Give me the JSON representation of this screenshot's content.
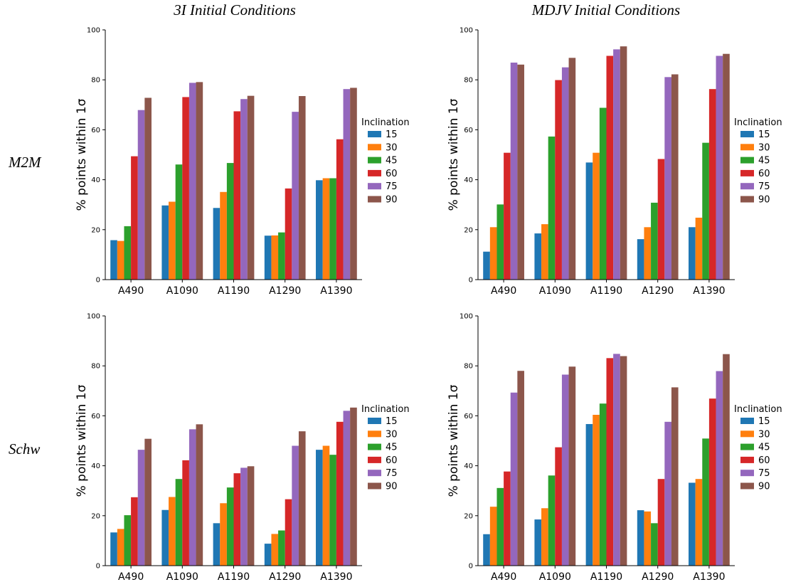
{
  "figure": {
    "column_titles": [
      "3I Initial Conditions",
      "MDJV Initial Conditions"
    ],
    "row_labels": [
      "M2M",
      "Schw"
    ]
  },
  "legend": {
    "title": "Inclination",
    "entries": [
      "15",
      "30",
      "45",
      "60",
      "75",
      "90"
    ],
    "colors": [
      "#1f77b4",
      "#ff7f0e",
      "#2ca02c",
      "#d62728",
      "#9467bd",
      "#8c564b"
    ]
  },
  "chart_data": [
    {
      "type": "bar",
      "panel": "3I Initial Conditions / M2M",
      "categories": [
        "A490",
        "A1090",
        "A1190",
        "A1290",
        "A1390"
      ],
      "ylabel": "% points within 1σ",
      "xlabel": "",
      "ylim": [
        0,
        100
      ],
      "yticks": [
        0,
        20,
        40,
        60,
        80,
        100
      ],
      "legend_title": "Inclination",
      "series": [
        {
          "name": "15",
          "values": [
            15.8,
            29.7,
            28.7,
            17.6,
            39.8
          ]
        },
        {
          "name": "30",
          "values": [
            15.5,
            31.2,
            35.1,
            17.7,
            40.6
          ]
        },
        {
          "name": "45",
          "values": [
            21.4,
            46.1,
            46.7,
            18.9,
            40.6
          ]
        },
        {
          "name": "60",
          "values": [
            49.4,
            73.1,
            67.4,
            36.5,
            56.2
          ]
        },
        {
          "name": "75",
          "values": [
            67.9,
            78.8,
            72.3,
            67.2,
            76.3
          ]
        },
        {
          "name": "90",
          "values": [
            72.8,
            79.1,
            73.6,
            73.5,
            76.8
          ]
        }
      ]
    },
    {
      "type": "bar",
      "panel": "MDJV Initial Conditions / M2M",
      "categories": [
        "A490",
        "A1090",
        "A1190",
        "A1290",
        "A1390"
      ],
      "ylabel": "% points within 1σ",
      "xlabel": "",
      "ylim": [
        0,
        100
      ],
      "yticks": [
        0,
        20,
        40,
        60,
        80,
        100
      ],
      "legend_title": "Inclination",
      "series": [
        {
          "name": "15",
          "values": [
            11.2,
            18.5,
            46.9,
            16.2,
            21.0
          ]
        },
        {
          "name": "30",
          "values": [
            21.0,
            22.2,
            50.8,
            21.0,
            24.8
          ]
        },
        {
          "name": "45",
          "values": [
            30.1,
            57.3,
            68.8,
            30.8,
            54.8
          ]
        },
        {
          "name": "60",
          "values": [
            50.8,
            79.9,
            89.6,
            48.3,
            76.3
          ]
        },
        {
          "name": "75",
          "values": [
            86.9,
            85.0,
            92.2,
            81.1,
            89.6
          ]
        },
        {
          "name": "90",
          "values": [
            86.1,
            88.8,
            93.4,
            82.2,
            90.4
          ]
        }
      ]
    },
    {
      "type": "bar",
      "panel": "3I Initial Conditions / Schw",
      "categories": [
        "A490",
        "A1090",
        "A1190",
        "A1290",
        "A1390"
      ],
      "ylabel": "% points within 1σ",
      "xlabel": "",
      "ylim": [
        0,
        100
      ],
      "yticks": [
        0,
        20,
        40,
        60,
        80,
        100
      ],
      "legend_title": "Inclination",
      "series": [
        {
          "name": "15",
          "values": [
            13.3,
            22.3,
            17.0,
            8.8,
            46.4
          ]
        },
        {
          "name": "30",
          "values": [
            14.7,
            27.5,
            25.0,
            12.7,
            48.0
          ]
        },
        {
          "name": "45",
          "values": [
            20.2,
            34.7,
            31.3,
            14.1,
            44.4
          ]
        },
        {
          "name": "60",
          "values": [
            27.4,
            42.2,
            37.0,
            26.6,
            57.6
          ]
        },
        {
          "name": "75",
          "values": [
            46.4,
            54.6,
            39.2,
            48.0,
            62.0
          ]
        },
        {
          "name": "90",
          "values": [
            50.8,
            56.6,
            39.8,
            53.8,
            63.3
          ]
        }
      ]
    },
    {
      "type": "bar",
      "panel": "MDJV Initial Conditions / Schw",
      "categories": [
        "A490",
        "A1090",
        "A1190",
        "A1290",
        "A1390"
      ],
      "ylabel": "% points within 1σ",
      "xlabel": "",
      "ylim": [
        0,
        100
      ],
      "yticks": [
        0,
        20,
        40,
        60,
        80,
        100
      ],
      "legend_title": "Inclination",
      "series": [
        {
          "name": "15",
          "values": [
            12.6,
            18.5,
            56.7,
            22.2,
            33.2
          ]
        },
        {
          "name": "30",
          "values": [
            23.6,
            23.0,
            60.4,
            21.7,
            34.7
          ]
        },
        {
          "name": "45",
          "values": [
            31.1,
            36.1,
            64.9,
            17.0,
            50.9
          ]
        },
        {
          "name": "60",
          "values": [
            37.7,
            47.4,
            83.1,
            34.7,
            66.9
          ]
        },
        {
          "name": "75",
          "values": [
            69.3,
            76.5,
            84.8,
            57.6,
            77.9
          ]
        },
        {
          "name": "90",
          "values": [
            78.0,
            79.7,
            83.9,
            71.4,
            84.7
          ]
        }
      ]
    }
  ]
}
